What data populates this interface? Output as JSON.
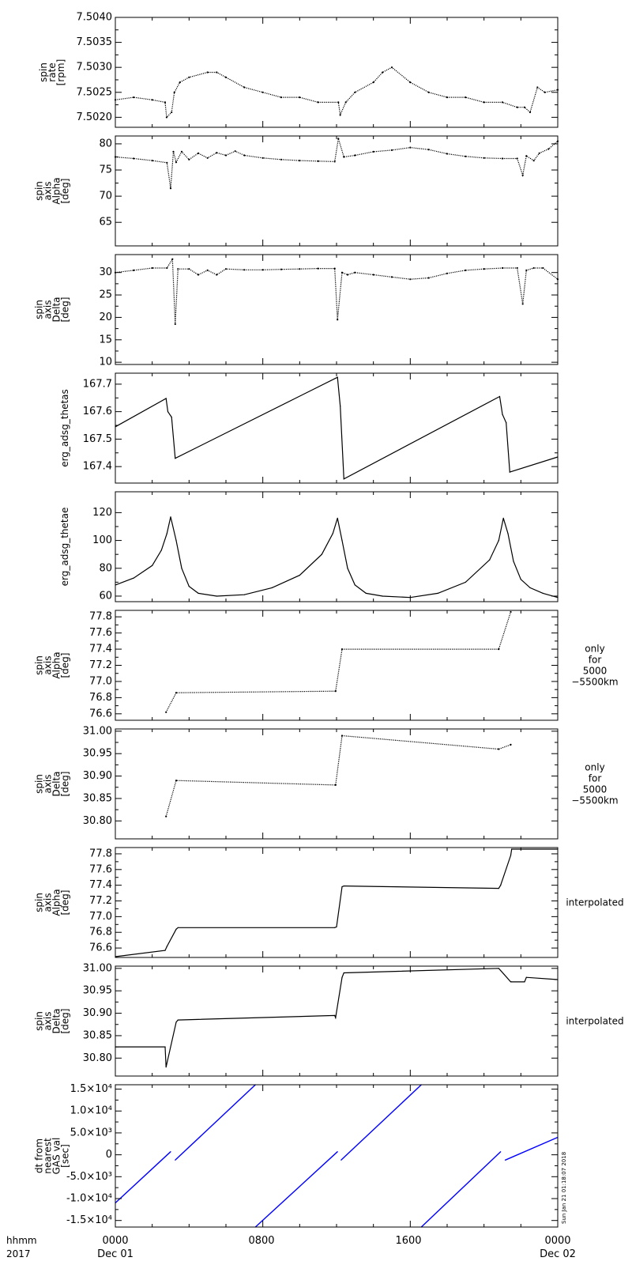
{
  "figure": {
    "x_tick_labels": [
      "0000",
      "0800",
      "1600",
      "0000"
    ],
    "x_tick_sublabels": [
      "Dec 01",
      "",
      "",
      "Dec 02"
    ],
    "corner_labels": [
      "hhmm",
      "2017"
    ],
    "timestamp": "Sun Jan 21 01:18:07 2018"
  },
  "chart_data": [
    {
      "type": "scatter",
      "ylabel_lines": [
        "spin",
        "rate",
        "[rpm]"
      ],
      "ylim": [
        7.5018,
        7.504
      ],
      "yticks": [
        7.502,
        7.5025,
        7.503,
        7.5035,
        7.504
      ],
      "ytick_labels": [
        "7.5020",
        "7.5025",
        "7.5030",
        "7.5035",
        "7.5040"
      ],
      "xlim_hours": [
        0,
        24
      ],
      "series": [
        {
          "x": [
            0,
            1,
            2,
            2.7,
            2.78,
            3.05,
            3.2,
            3.5,
            4,
            5,
            5.5,
            6,
            7,
            8,
            9,
            10,
            11,
            12.1,
            12.2,
            12.5,
            13,
            14,
            14.5,
            15,
            16,
            17,
            18,
            19,
            20,
            21,
            21.8,
            22.2,
            22.5,
            22.9,
            23.3,
            24
          ],
          "y": [
            7.50235,
            7.5024,
            7.50235,
            7.5023,
            7.502,
            7.5021,
            7.5025,
            7.5027,
            7.5028,
            7.5029,
            7.5029,
            7.5028,
            7.5026,
            7.5025,
            7.5024,
            7.5024,
            7.5023,
            7.5023,
            7.50205,
            7.5023,
            7.5025,
            7.5027,
            7.5029,
            7.503,
            7.5027,
            7.5025,
            7.5024,
            7.5024,
            7.5023,
            7.5023,
            7.5022,
            7.5022,
            7.5021,
            7.5026,
            7.5025,
            7.50255
          ]
        }
      ]
    },
    {
      "type": "scatter",
      "ylabel_lines": [
        "spin",
        "axis",
        "Alpha",
        "[deg]"
      ],
      "ylim": [
        60.5,
        81.5
      ],
      "yticks": [
        65,
        70,
        75,
        80
      ],
      "ytick_labels": [
        "65",
        "70",
        "75",
        "80"
      ],
      "xlim_hours": [
        0,
        24
      ],
      "series": [
        {
          "x": [
            0,
            1,
            2,
            2.8,
            3.0,
            3.15,
            3.3,
            3.6,
            4.0,
            4.5,
            5,
            5.5,
            6,
            6.5,
            7,
            8,
            9,
            10,
            11,
            11.9,
            12.1,
            12.4,
            13,
            14,
            15,
            16,
            17,
            18,
            19,
            20,
            21,
            21.8,
            22.1,
            22.3,
            22.7,
            23,
            23.5,
            24
          ],
          "y": [
            77.5,
            77.2,
            76.8,
            76.4,
            71.5,
            78.5,
            76.5,
            78.5,
            77.0,
            78.2,
            77.3,
            78.3,
            77.8,
            78.6,
            77.8,
            77.3,
            77.0,
            76.8,
            76.7,
            76.6,
            81.0,
            77.5,
            77.8,
            78.5,
            78.8,
            79.3,
            78.9,
            78.1,
            77.6,
            77.3,
            77.2,
            77.2,
            74.0,
            77.7,
            76.8,
            78.2,
            79.0,
            80.5
          ]
        }
      ]
    },
    {
      "type": "scatter",
      "ylabel_lines": [
        "spin",
        "axis",
        "Delta",
        "[deg]"
      ],
      "ylim": [
        9.5,
        34
      ],
      "yticks": [
        10,
        15,
        20,
        25,
        30
      ],
      "ytick_labels": [
        "10",
        "15",
        "20",
        "25",
        "30"
      ],
      "xlim_hours": [
        0,
        24
      ],
      "series": [
        {
          "x": [
            0,
            1,
            2,
            2.8,
            3.1,
            3.25,
            3.4,
            4,
            4.5,
            5,
            5.5,
            6,
            7,
            8,
            9,
            10,
            11,
            11.9,
            12.05,
            12.3,
            12.6,
            13,
            14,
            15,
            16,
            17,
            18,
            19,
            20,
            21,
            21.8,
            22.1,
            22.3,
            22.7,
            23.2,
            24
          ],
          "y": [
            30.0,
            30.5,
            31.0,
            31.0,
            33.0,
            18.5,
            30.8,
            30.8,
            29.5,
            30.5,
            29.5,
            30.8,
            30.6,
            30.6,
            30.7,
            30.8,
            30.9,
            30.9,
            19.5,
            30.0,
            29.5,
            30.0,
            29.5,
            29.0,
            28.5,
            28.8,
            29.8,
            30.5,
            30.8,
            31.0,
            31.0,
            23.0,
            30.5,
            31.0,
            31.0,
            28.5
          ]
        }
      ]
    },
    {
      "type": "line",
      "ylabel_lines": [
        "erg_adsg_thetas"
      ],
      "ylim": [
        167.34,
        167.74
      ],
      "yticks": [
        167.4,
        167.5,
        167.6,
        167.7
      ],
      "ytick_labels": [
        "167.4",
        "167.5",
        "167.6",
        "167.7"
      ],
      "xlim_hours": [
        0,
        24
      ],
      "series": [
        {
          "x": [
            0,
            2.75,
            2.85,
            3.05,
            3.25,
            12.05,
            12.2,
            12.4,
            20.85,
            21.0,
            21.2,
            21.4,
            24
          ],
          "y": [
            167.545,
            167.648,
            167.6,
            167.58,
            167.43,
            167.725,
            167.62,
            167.355,
            167.655,
            167.59,
            167.56,
            167.38,
            167.435
          ]
        }
      ]
    },
    {
      "type": "line",
      "ylabel_lines": [
        "erg_adsg_thetae"
      ],
      "ylim": [
        56,
        135
      ],
      "yticks": [
        60,
        80,
        100,
        120
      ],
      "ytick_labels": [
        "60",
        "80",
        "100",
        "120"
      ],
      "xlim_hours": [
        0,
        24
      ],
      "series": [
        {
          "x": [
            0,
            1,
            2,
            2.5,
            2.8,
            3.0,
            3.3,
            3.6,
            4.0,
            4.5,
            5.5,
            7,
            8.5,
            10,
            11.2,
            11.8,
            12.05,
            12.3,
            12.6,
            13.0,
            13.6,
            14.5,
            16,
            17.5,
            19,
            20.3,
            20.8,
            21.05,
            21.3,
            21.6,
            22.0,
            22.5,
            23.2,
            24
          ],
          "y": [
            68,
            73,
            82,
            93,
            105,
            117,
            100,
            80,
            67,
            62,
            60,
            61,
            66,
            75,
            90,
            105,
            116,
            100,
            80,
            68,
            62,
            60,
            59,
            62,
            70,
            86,
            100,
            116,
            105,
            85,
            72,
            66,
            62,
            59
          ]
        }
      ]
    },
    {
      "type": "scatter",
      "ylabel_lines": [
        "spin",
        "axis",
        "Alpha",
        "[deg]"
      ],
      "right_note_lines": [
        "only",
        "for",
        "5000",
        "−5500km"
      ],
      "ylim": [
        76.52,
        77.88
      ],
      "yticks": [
        76.6,
        76.8,
        77.0,
        77.2,
        77.4,
        77.6,
        77.8
      ],
      "ytick_labels": [
        "76.6",
        "76.8",
        "77.0",
        "77.2",
        "77.4",
        "77.6",
        "77.8"
      ],
      "xlim_hours": [
        0,
        24
      ],
      "series": [
        {
          "x": [
            2.75,
            3.3,
            11.95,
            12.3,
            20.8,
            21.45
          ],
          "y": [
            76.62,
            76.86,
            76.88,
            77.4,
            77.4,
            77.86
          ]
        }
      ]
    },
    {
      "type": "scatter",
      "ylabel_lines": [
        "spin",
        "axis",
        "Delta",
        "[deg]"
      ],
      "right_note_lines": [
        "only",
        "for",
        "5000",
        "−5500km"
      ],
      "ylim": [
        30.76,
        31.005
      ],
      "yticks": [
        30.8,
        30.85,
        30.9,
        30.95,
        31.0
      ],
      "ytick_labels": [
        "30.80",
        "30.85",
        "30.90",
        "30.95",
        "31.00"
      ],
      "xlim_hours": [
        0,
        24
      ],
      "series": [
        {
          "x": [
            2.75,
            3.3,
            11.95,
            12.3,
            20.8,
            21.45
          ],
          "y": [
            30.81,
            30.89,
            30.88,
            30.99,
            30.96,
            30.97
          ]
        }
      ]
    },
    {
      "type": "line",
      "ylabel_lines": [
        "spin",
        "axis",
        "Alpha",
        "[deg]"
      ],
      "right_note_lines": [
        "interpolated"
      ],
      "ylim": [
        76.48,
        77.88
      ],
      "yticks": [
        76.6,
        76.8,
        77.0,
        77.2,
        77.4,
        77.6,
        77.8
      ],
      "ytick_labels": [
        "76.6",
        "76.8",
        "77.0",
        "77.2",
        "77.4",
        "77.6",
        "77.8"
      ],
      "xlim_hours": [
        0,
        24
      ],
      "series": [
        {
          "x": [
            0,
            2.7,
            2.8,
            3.3,
            3.4,
            11.9,
            12.0,
            12.3,
            12.4,
            20.8,
            20.9,
            21.45,
            21.5,
            24
          ],
          "y": [
            76.49,
            76.57,
            76.62,
            76.84,
            76.86,
            76.86,
            76.87,
            77.38,
            77.39,
            77.36,
            77.4,
            77.78,
            77.86,
            77.86
          ]
        }
      ]
    },
    {
      "type": "line",
      "ylabel_lines": [
        "spin",
        "axis",
        "Delta",
        "[deg]"
      ],
      "right_note_lines": [
        "interpolated"
      ],
      "ylim": [
        30.76,
        31.005
      ],
      "yticks": [
        30.8,
        30.85,
        30.9,
        30.95,
        31.0
      ],
      "ytick_labels": [
        "30.80",
        "30.85",
        "30.90",
        "30.95",
        "31.00"
      ],
      "xlim_hours": [
        0,
        24
      ],
      "series": [
        {
          "x": [
            0,
            2.7,
            2.75,
            3.3,
            3.4,
            11.9,
            11.95,
            12.3,
            12.4,
            20.8,
            21.45,
            21.5,
            22.2,
            22.3,
            24
          ],
          "y": [
            30.825,
            30.825,
            30.78,
            30.88,
            30.885,
            30.895,
            30.89,
            30.98,
            30.99,
            31.0,
            30.97,
            30.97,
            30.97,
            30.98,
            30.975
          ]
        }
      ]
    },
    {
      "type": "line",
      "ylabel_lines": [
        "dt from",
        "nearest",
        "GAS val",
        "[sec]"
      ],
      "ylim": [
        -16500,
        16000
      ],
      "yticks": [
        -15000,
        -10000,
        -5000,
        0,
        5000,
        10000,
        15000
      ],
      "ytick_labels": [
        "-1.5×10⁴",
        "-1.0×10⁴",
        "-5.0×10³",
        "0",
        "5.0×10³",
        "1.0×10⁴",
        "1.5×10⁴"
      ],
      "xlim_hours": [
        0,
        24
      ],
      "line_color": "#0000ff",
      "series": [
        {
          "x": [
            0,
            3.0
          ],
          "y": [
            -11000,
            700
          ]
        },
        {
          "x": [
            3.25,
            7.6
          ],
          "y": [
            -1200,
            16000
          ]
        },
        {
          "x": [
            7.6,
            12.05
          ],
          "y": [
            -16500,
            700
          ]
        },
        {
          "x": [
            12.25,
            16.6
          ],
          "y": [
            -1200,
            16000
          ]
        },
        {
          "x": [
            16.6,
            20.9
          ],
          "y": [
            -16500,
            700
          ]
        },
        {
          "x": [
            21.15,
            24
          ],
          "y": [
            -1200,
            4000
          ]
        }
      ]
    }
  ]
}
